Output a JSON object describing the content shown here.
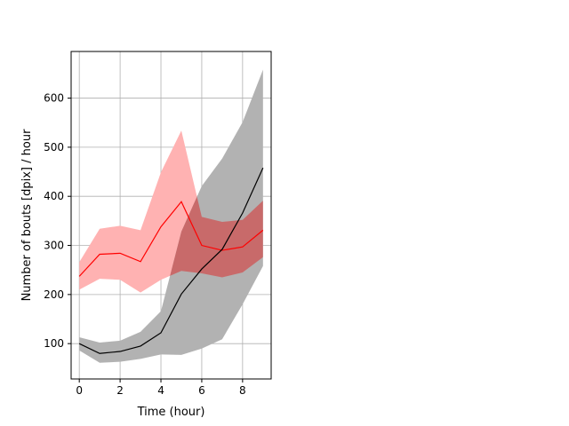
{
  "chart_data": {
    "type": "line",
    "xlabel": "Time (hour)",
    "ylabel": "Number of bouts [dpix]  / hour",
    "xlim": [
      -0.4,
      9.4
    ],
    "ylim": [
      28,
      695
    ],
    "xticks": [
      0,
      2,
      4,
      6,
      8
    ],
    "yticks": [
      100,
      200,
      300,
      400,
      500,
      600
    ],
    "grid": true,
    "x": [
      0,
      1,
      2,
      3,
      4,
      5,
      6,
      7,
      8,
      9
    ],
    "series": [
      {
        "color": "#ff0000",
        "band_color": "#ffb2b2",
        "values": [
          237,
          282,
          284,
          267,
          338,
          389,
          300,
          290,
          297,
          331
        ],
        "lower": [
          210,
          232,
          230,
          204,
          230,
          248,
          243,
          235,
          245,
          276
        ],
        "upper": [
          266,
          334,
          340,
          331,
          449,
          534,
          358,
          348,
          352,
          391
        ]
      },
      {
        "color": "#000000",
        "band_color": "#b2b2b2",
        "values": [
          100,
          80,
          84,
          95,
          122,
          201,
          252,
          292,
          366,
          458
        ],
        "lower": [
          86,
          61,
          63,
          69,
          78,
          77,
          90,
          109,
          180,
          258
        ],
        "upper": [
          113,
          102,
          106,
          124,
          166,
          328,
          421,
          477,
          551,
          658
        ]
      }
    ]
  }
}
